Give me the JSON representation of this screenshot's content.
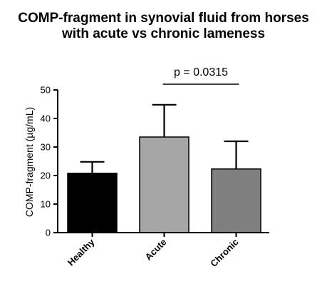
{
  "chart_data": {
    "type": "bar",
    "title": "COMP-fragment in synovial fluid from horses with acute vs chronic lameness",
    "title_lines": [
      "COMP-fragment in synovial fluid from horses",
      "with acute vs chronic lameness"
    ],
    "xlabel": "",
    "ylabel": "COMP-fragment (µg/mL)",
    "categories": [
      "Healthy",
      "Acute",
      "Chronic"
    ],
    "values": [
      20.8,
      33.5,
      22.3
    ],
    "error_upper": [
      24.8,
      44.8,
      32.0
    ],
    "bar_colors": [
      "#000000",
      "#a6a6a6",
      "#7f7f7f"
    ],
    "ylim": [
      0,
      50
    ],
    "yticks": [
      0,
      10,
      20,
      30,
      40,
      50
    ],
    "grid": false,
    "legend": "none",
    "annotations": [
      {
        "text": "p = 0.0315",
        "from_category": "Acute",
        "to_category": "Chronic"
      }
    ]
  }
}
